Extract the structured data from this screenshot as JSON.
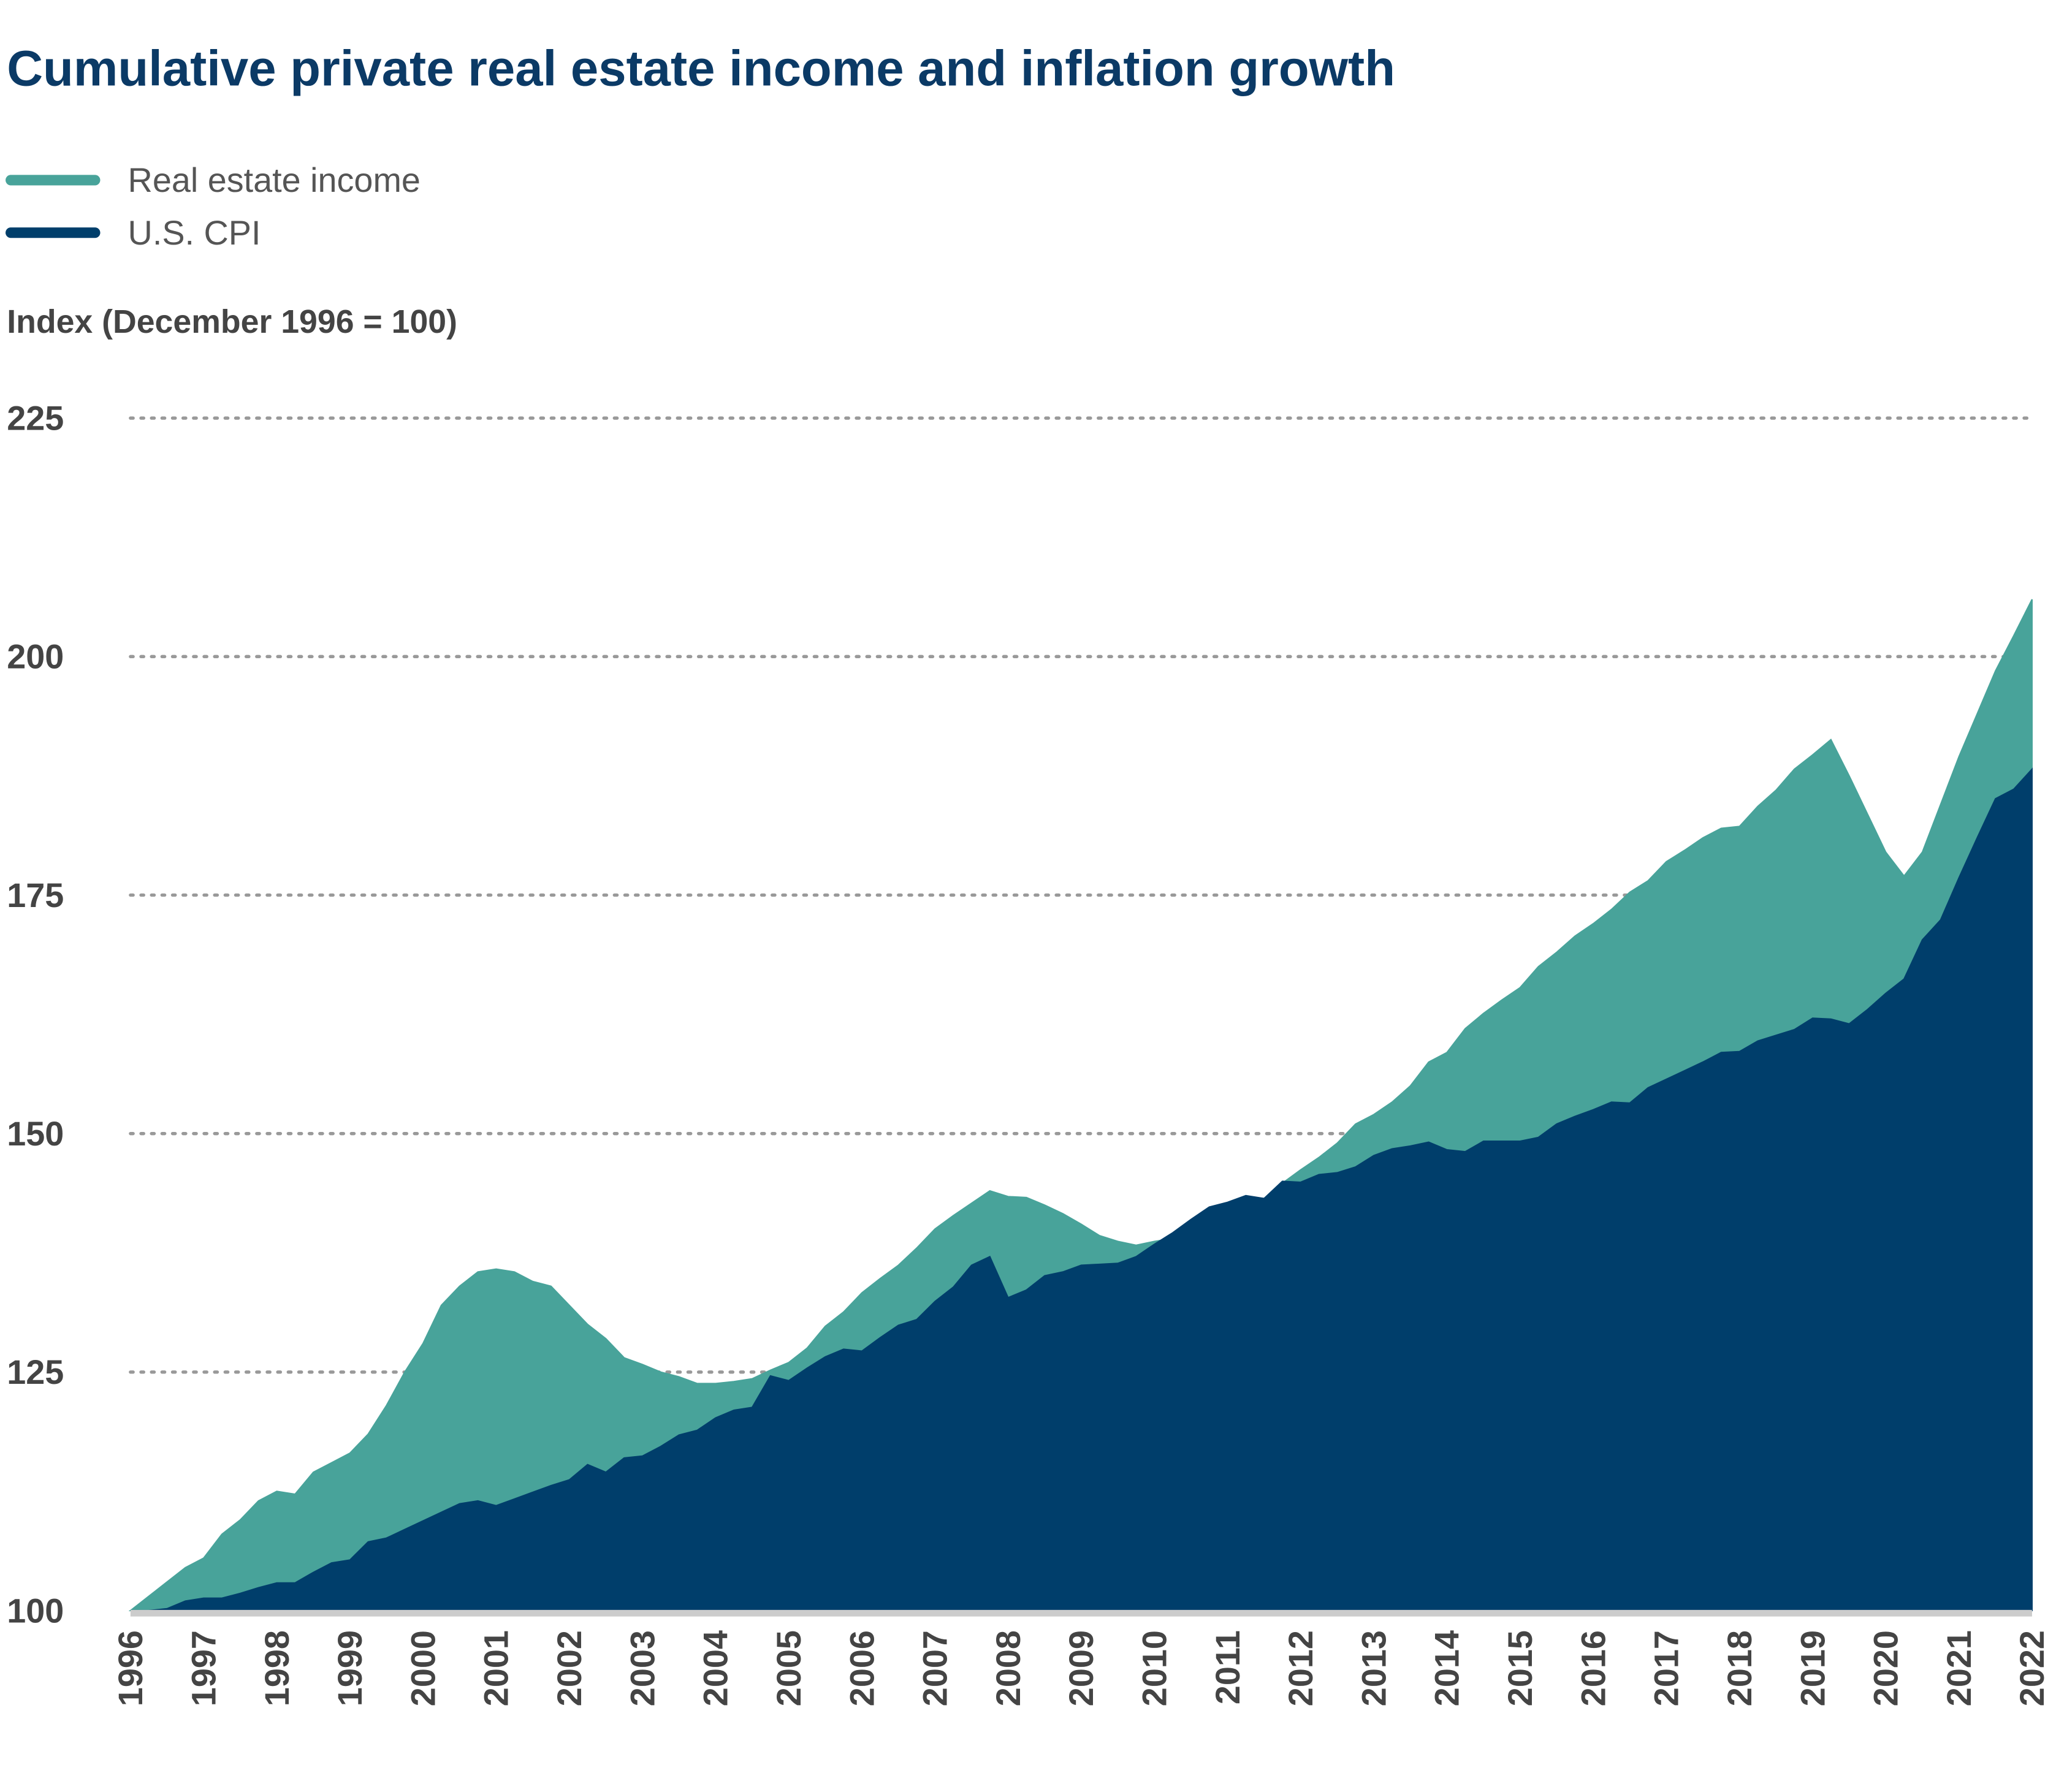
{
  "chart_data": {
    "type": "area",
    "title": "Cumulative private real estate income and inflation growth",
    "ylabel": "Index (December 1996 = 100)",
    "x": [
      1996,
      1996.25,
      1996.5,
      1996.75,
      1997,
      1997.25,
      1997.5,
      1997.75,
      1998,
      1998.25,
      1998.5,
      1998.75,
      1999,
      1999.25,
      1999.5,
      1999.75,
      2000,
      2000.25,
      2000.5,
      2000.75,
      2001,
      2001.25,
      2001.5,
      2001.75,
      2002,
      2002.25,
      2002.5,
      2002.75,
      2003,
      2003.25,
      2003.5,
      2003.75,
      2004,
      2004.25,
      2004.5,
      2004.75,
      2005,
      2005.25,
      2005.5,
      2005.75,
      2006,
      2006.25,
      2006.5,
      2006.75,
      2007,
      2007.25,
      2007.5,
      2007.75,
      2008,
      2008.25,
      2008.5,
      2008.75,
      2009,
      2009.25,
      2009.5,
      2009.75,
      2010,
      2010.25,
      2010.5,
      2010.75,
      2011,
      2011.25,
      2011.5,
      2011.75,
      2012,
      2012.25,
      2012.5,
      2012.75,
      2013,
      2013.25,
      2013.5,
      2013.75,
      2014,
      2014.25,
      2014.5,
      2014.75,
      2015,
      2015.25,
      2015.5,
      2015.75,
      2016,
      2016.25,
      2016.5,
      2016.75,
      2017,
      2017.25,
      2017.5,
      2017.75,
      2018,
      2018.25,
      2018.5,
      2018.75,
      2019,
      2019.25,
      2019.5,
      2019.75,
      2020,
      2020.25,
      2020.5,
      2020.75,
      2021,
      2021.25,
      2021.5,
      2021.75,
      2022
    ],
    "series": [
      {
        "name": "Real estate income",
        "color": "#48a39a",
        "values": [
          100,
          101.5,
          103,
          104.5,
          105.5,
          108,
          109.5,
          111.5,
          112.5,
          112.2,
          114.5,
          115.5,
          116.5,
          118.5,
          121.5,
          125,
          128,
          132,
          134,
          135.5,
          135.8,
          135.5,
          134.5,
          134,
          132,
          130,
          128.5,
          126.5,
          125.8,
          125,
          124.5,
          123.8,
          123.8,
          124,
          124.3,
          125.2,
          126,
          127.5,
          129.8,
          131.3,
          133.3,
          134.8,
          136.2,
          138,
          140,
          141.4,
          142.7,
          144,
          143.4,
          143.3,
          142.5,
          141.6,
          140.5,
          139.3,
          138.7,
          138.3,
          138.7,
          139,
          140.3,
          142,
          142.5,
          143.3,
          143.2,
          144.8,
          146.2,
          147.5,
          149,
          151,
          152,
          153.3,
          155,
          157.5,
          158.5,
          161,
          162.6,
          164,
          165.3,
          167.5,
          169,
          170.7,
          172,
          173.5,
          175.3,
          176.5,
          178.5,
          179.7,
          181,
          182,
          182.2,
          184.3,
          186,
          188.2,
          189.7,
          191.3,
          187.5,
          183.5,
          179.5,
          177,
          179.5,
          184.5,
          189.5,
          194,
          198.5,
          202.2,
          206
        ]
      },
      {
        "name": "U.S. CPI",
        "color": "#003e6b",
        "values": [
          100,
          100,
          100.2,
          101,
          101.3,
          101.3,
          101.8,
          102.4,
          102.9,
          102.9,
          104,
          105,
          105.3,
          107.2,
          107.6,
          108.5,
          109.4,
          110.3,
          111.2,
          111.5,
          111,
          111.7,
          112.4,
          113.1,
          113.7,
          115.3,
          114.5,
          116,
          116.2,
          117.2,
          118.4,
          118.9,
          120.2,
          121,
          121.3,
          124.6,
          124.1,
          125.4,
          126.6,
          127.4,
          127.2,
          128.6,
          129.9,
          130.5,
          132.4,
          133.9,
          136.2,
          137.1,
          132.8,
          133.6,
          135.1,
          135.5,
          136.2,
          136.3,
          136.4,
          137.1,
          138.4,
          139.6,
          141,
          142.3,
          142.8,
          143.5,
          143.2,
          145,
          144.9,
          145.7,
          145.9,
          146.5,
          147.7,
          148.4,
          148.7,
          149.1,
          148.3,
          148.1,
          149.2,
          149.2,
          149.2,
          149.6,
          151,
          151.8,
          152.5,
          153.3,
          153.2,
          154.8,
          155.7,
          156.6,
          157.5,
          158.5,
          158.6,
          159.7,
          160.3,
          160.9,
          162.1,
          162,
          161.5,
          163,
          164.7,
          166.2,
          170.3,
          172.4,
          176.8,
          181,
          185.1,
          186.1,
          188.2
        ]
      }
    ],
    "xlim": [
      1996,
      2022
    ],
    "xticks": [
      1996,
      1997,
      1998,
      1999,
      2000,
      2001,
      2002,
      2003,
      2004,
      2005,
      2006,
      2007,
      2008,
      2009,
      2010,
      2011,
      2012,
      2013,
      2014,
      2015,
      2016,
      2017,
      2018,
      2019,
      2020,
      2021,
      2022
    ],
    "ylim": [
      100,
      225
    ],
    "yticks": [
      100,
      125,
      150,
      175,
      200,
      225
    ],
    "grid": true,
    "legend": "top-left"
  }
}
